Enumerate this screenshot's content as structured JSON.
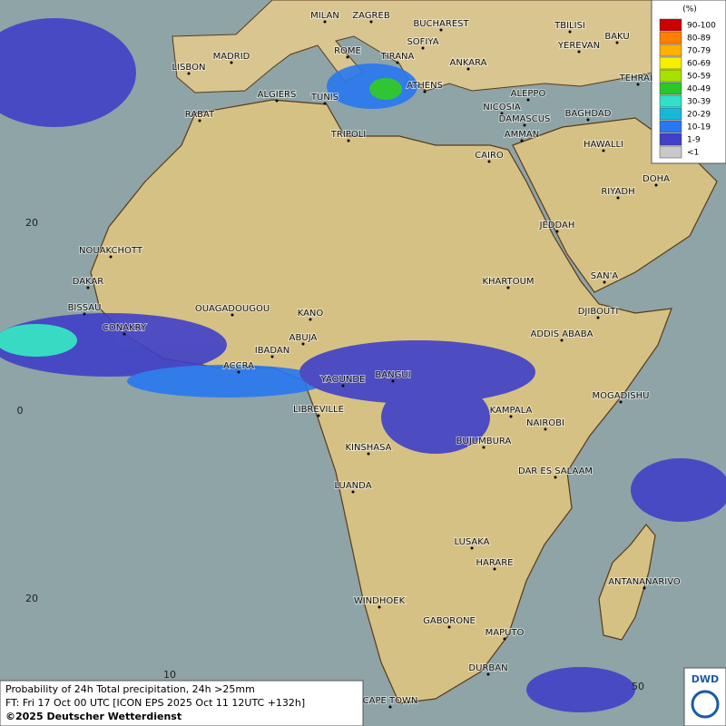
{
  "map": {
    "cities": [
      "MILAN",
      "ZAGREB",
      "BUCHAREST",
      "SOFIYA",
      "TBILISI",
      "BAKU",
      "YEREVAN",
      "MADRID",
      "ROME",
      "TIRANA",
      "ANKARA",
      "TEHRAN",
      "LISBON",
      "ALGIERS",
      "TUNIS",
      "ATHENS",
      "ALEPPO",
      "RABAT",
      "NICOSIA",
      "BAGHDAD",
      "DAMASCUS",
      "AMMAN",
      "TRIPOLI",
      "HAWALLI",
      "CAIRO",
      "DOHA",
      "RIYADH",
      "JEDDAH",
      "NOUAKCHOTT",
      "DAKAR",
      "KHARTOUM",
      "SAN'A",
      "BISSAU",
      "OUAGADOUGOU",
      "KANO",
      "DJIBOUTI",
      "CONAKRY",
      "ABUJA",
      "ADDIS ABABA",
      "IBADAN",
      "ACCRA",
      "YAOUNDE",
      "BANGUI",
      "MOGADISHU",
      "LIBREVILLE",
      "KAMPALA",
      "NAIROBI",
      "BUJUMBURA",
      "KINSHASA",
      "DAR ES SALAAM",
      "LUANDA",
      "LUSAKA",
      "HARARE",
      "ANTANANARIVO",
      "WINDHOEK",
      "GABORONE",
      "MAPUTO",
      "DURBAN",
      "CAPE TOWN"
    ],
    "grid_labels": [
      "20",
      "0",
      "20",
      "10",
      "50"
    ],
    "legend": {
      "unit": "(%)",
      "classes": [
        {
          "label": "90-100",
          "color": "#cc0000"
        },
        {
          "label": "80-89",
          "color": "#ff7f00"
        },
        {
          "label": "70-79",
          "color": "#ffb000"
        },
        {
          "label": "60-69",
          "color": "#f5f000"
        },
        {
          "label": "50-59",
          "color": "#a8e000"
        },
        {
          "label": "40-49",
          "color": "#28c828"
        },
        {
          "label": "30-39",
          "color": "#30e0c8"
        },
        {
          "label": "20-29",
          "color": "#18b8d8"
        },
        {
          "label": "10-19",
          "color": "#2878f0"
        },
        {
          "label": "1-9",
          "color": "#4040c8"
        },
        {
          "label": "<1",
          "color": "#c8c8c8"
        }
      ]
    },
    "footer": [
      "Probability of 24h Total precipitation, 24h >25mm",
      "FT: Fri 17 Oct 00 UTC [ICON EPS 2025 Oct 11 12UTC +132h]",
      "©2025 Deutscher Wetterdienst"
    ],
    "logo": "DWD"
  }
}
